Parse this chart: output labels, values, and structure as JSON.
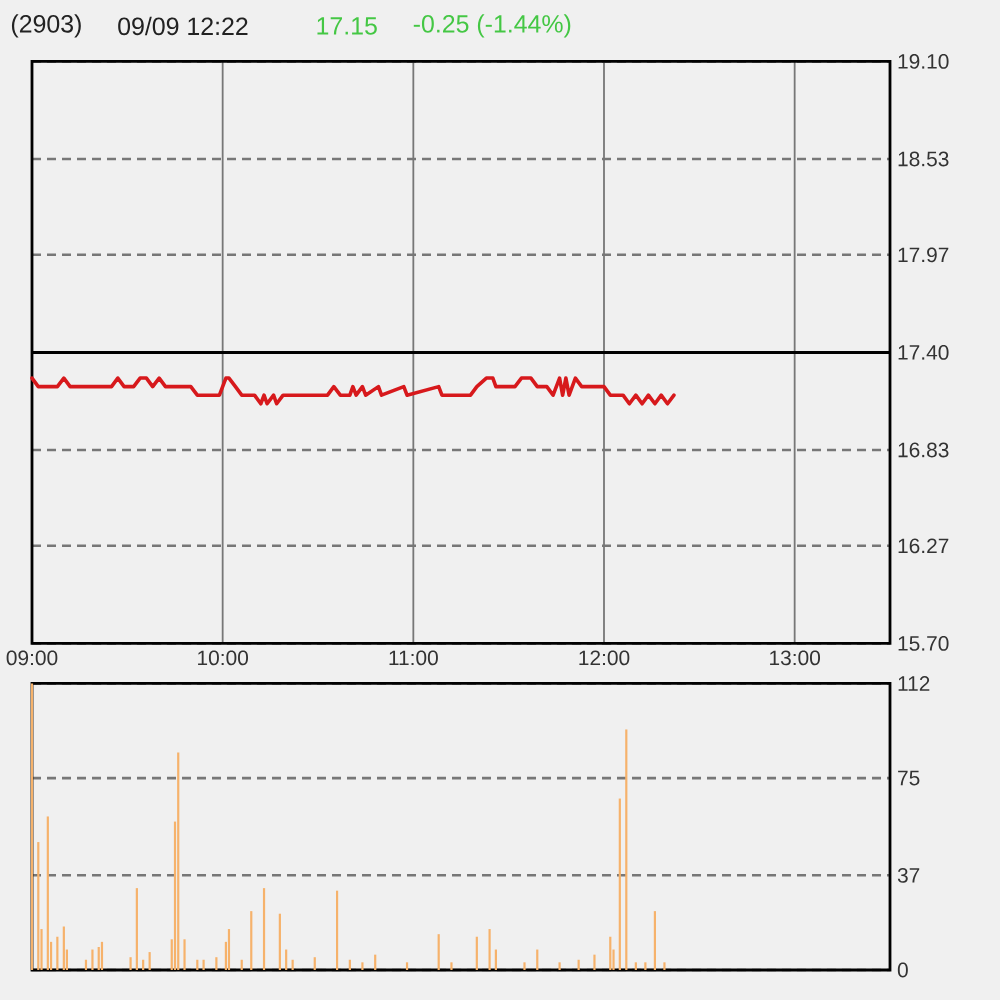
{
  "chart_data": [
    {
      "type": "line",
      "title": "(2903)",
      "subtitle": "09/09 12:22",
      "annotations": [
        "17.15",
        "-0.25 (-1.44%)"
      ],
      "x": [
        9.0,
        9.033,
        9.083,
        9.133,
        9.167,
        9.2,
        9.3,
        9.417,
        9.45,
        9.483,
        9.533,
        9.567,
        9.6,
        9.633,
        9.667,
        9.7,
        9.75,
        9.8,
        9.833,
        9.867,
        9.917,
        9.95,
        9.983,
        10.0,
        10.017,
        10.033,
        10.067,
        10.1,
        10.133,
        10.167,
        10.2,
        10.217,
        10.233,
        10.267,
        10.283,
        10.317,
        10.417,
        10.55,
        10.583,
        10.617,
        10.667,
        10.683,
        10.7,
        10.733,
        10.75,
        10.817,
        10.833,
        10.95,
        10.967,
        11.133,
        11.15,
        11.3,
        11.333,
        11.383,
        11.417,
        11.433,
        11.467,
        11.533,
        11.567,
        11.617,
        11.65,
        11.7,
        11.733,
        11.767,
        11.783,
        11.8,
        11.817,
        11.85,
        11.883,
        11.933,
        12.0,
        12.033,
        12.1,
        12.133,
        12.167,
        12.2,
        12.233,
        12.267,
        12.3,
        12.333,
        12.367
      ],
      "values": [
        17.25,
        17.2,
        17.2,
        17.2,
        17.25,
        17.2,
        17.2,
        17.2,
        17.25,
        17.2,
        17.2,
        17.25,
        17.25,
        17.2,
        17.25,
        17.2,
        17.2,
        17.2,
        17.2,
        17.15,
        17.15,
        17.15,
        17.15,
        17.2,
        17.25,
        17.25,
        17.2,
        17.15,
        17.15,
        17.15,
        17.1,
        17.15,
        17.1,
        17.15,
        17.1,
        17.15,
        17.15,
        17.15,
        17.2,
        17.15,
        17.15,
        17.2,
        17.15,
        17.2,
        17.15,
        17.2,
        17.15,
        17.2,
        17.15,
        17.2,
        17.15,
        17.15,
        17.2,
        17.25,
        17.25,
        17.2,
        17.2,
        17.2,
        17.25,
        17.25,
        17.2,
        17.2,
        17.15,
        17.25,
        17.15,
        17.25,
        17.15,
        17.25,
        17.2,
        17.2,
        17.2,
        17.15,
        17.15,
        17.1,
        17.15,
        17.1,
        17.15,
        17.1,
        17.15,
        17.1,
        17.15
      ],
      "color": "#d7191c",
      "xlim": [
        9,
        13.5
      ],
      "xticks": [
        {
          "value": 9,
          "label": "09:00"
        },
        {
          "value": 10,
          "label": "10:00"
        },
        {
          "value": 11,
          "label": "11:00"
        },
        {
          "value": 12,
          "label": "12:00"
        },
        {
          "value": 13,
          "label": "13:00"
        }
      ],
      "ylim": [
        15.7,
        19.1
      ],
      "yticks": [
        {
          "value": 15.7,
          "label": "15.70"
        },
        16.27,
        16.83,
        {
          "value": 17.4,
          "label": "17.40"
        },
        17.97,
        18.53,
        {
          "value": 19.1,
          "label": "19.10"
        }
      ],
      "grid": true,
      "ref_lines": [
        {
          "axis": "y",
          "value": 17.4,
          "color": "#000000"
        }
      ]
    },
    {
      "type": "bar",
      "x": [
        9.0,
        9.033,
        9.05,
        9.083,
        9.1,
        9.133,
        9.167,
        9.183,
        9.283,
        9.317,
        9.35,
        9.367,
        9.517,
        9.55,
        9.583,
        9.617,
        9.733,
        9.75,
        9.767,
        9.8,
        9.867,
        9.9,
        9.967,
        10.017,
        10.033,
        10.1,
        10.15,
        10.217,
        10.3,
        10.333,
        10.367,
        10.483,
        10.6,
        10.667,
        10.733,
        10.8,
        10.967,
        11.133,
        11.2,
        11.333,
        11.4,
        11.433,
        11.583,
        11.65,
        11.767,
        11.867,
        11.95,
        12.033,
        12.05,
        12.083,
        12.117,
        12.167,
        12.217,
        12.267,
        12.317
      ],
      "values": [
        112,
        50,
        16,
        60,
        11,
        13,
        17,
        8,
        4,
        8,
        9,
        11,
        5,
        32,
        4,
        7,
        12,
        58,
        85,
        12,
        4,
        4,
        5,
        11,
        16,
        4,
        23,
        32,
        22,
        8,
        4,
        5,
        31,
        4,
        3,
        6,
        3,
        14,
        3,
        13,
        16,
        8,
        3,
        8,
        3,
        4,
        6,
        13,
        8,
        67,
        94,
        3,
        3,
        23,
        3
      ],
      "color": "#f6b26b",
      "xlim": [
        9,
        13.5
      ],
      "ylim": [
        0,
        112
      ],
      "yticks": [
        0,
        37,
        75,
        112
      ],
      "grid": "y",
      "tick_labels": "y"
    }
  ]
}
